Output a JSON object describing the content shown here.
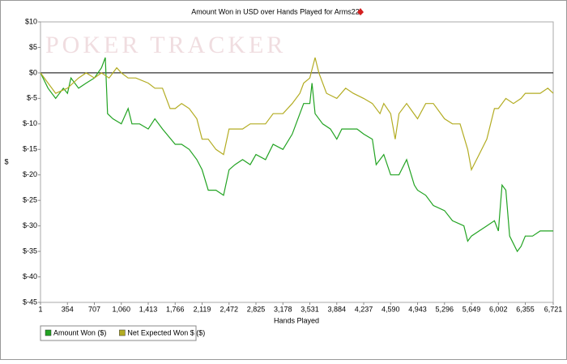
{
  "chart_data": {
    "type": "line",
    "title": "Amount Won in USD over Hands Played for Arms22",
    "watermark": "POKER TRACKER",
    "xlabel": "Hands Played",
    "ylabel": "$",
    "xlim": [
      1,
      6721
    ],
    "ylim": [
      -45,
      10
    ],
    "hline": 0,
    "xticks": [
      1,
      354,
      707,
      {
        "value": 1060,
        "label": "1,060"
      },
      {
        "value": 1413,
        "label": "1,413"
      },
      {
        "value": 1766,
        "label": "1,766"
      },
      {
        "value": 2119,
        "label": "2,119"
      },
      {
        "value": 2472,
        "label": "2,472"
      },
      {
        "value": 2825,
        "label": "2,825"
      },
      {
        "value": 3178,
        "label": "3,178"
      },
      {
        "value": 3531,
        "label": "3,531"
      },
      {
        "value": 3884,
        "label": "3,884"
      },
      {
        "value": 4237,
        "label": "4,237"
      },
      {
        "value": 4590,
        "label": "4,590"
      },
      {
        "value": 4943,
        "label": "4,943"
      },
      {
        "value": 5296,
        "label": "5,296"
      },
      {
        "value": 5649,
        "label": "5,649"
      },
      {
        "value": 6002,
        "label": "6,002"
      },
      {
        "value": 6355,
        "label": "6,355"
      },
      {
        "value": 6721,
        "label": "6,721"
      }
    ],
    "yticks": [
      {
        "value": 10,
        "label": "$10"
      },
      {
        "value": 5,
        "label": "$5"
      },
      {
        "value": 0,
        "label": "$0"
      },
      {
        "value": -5,
        "label": "$-5"
      },
      {
        "value": -10,
        "label": "$-10"
      },
      {
        "value": -15,
        "label": "$-15"
      },
      {
        "value": -20,
        "label": "$-20"
      },
      {
        "value": -25,
        "label": "$-25"
      },
      {
        "value": -30,
        "label": "$-30"
      },
      {
        "value": -35,
        "label": "$-35"
      },
      {
        "value": -40,
        "label": "$-40"
      },
      {
        "value": -45,
        "label": "$-45"
      }
    ],
    "series": [
      {
        "name": "Amount Won ($)",
        "color": "#22a322",
        "x": [
          1,
          100,
          200,
          300,
          354,
          400,
          500,
          600,
          707,
          800,
          850,
          880,
          950,
          1060,
          1150,
          1200,
          1300,
          1413,
          1500,
          1600,
          1766,
          1850,
          1950,
          2050,
          2119,
          2200,
          2300,
          2400,
          2472,
          2550,
          2650,
          2750,
          2825,
          2950,
          3050,
          3178,
          3300,
          3400,
          3450,
          3531,
          3560,
          3600,
          3700,
          3800,
          3884,
          3950,
          4050,
          4150,
          4237,
          4350,
          4400,
          4500,
          4590,
          4700,
          4800,
          4900,
          4943,
          5050,
          5150,
          5296,
          5400,
          5550,
          5600,
          5649,
          5750,
          5850,
          5950,
          6002,
          6050,
          6100,
          6150,
          6250,
          6300,
          6355,
          6450,
          6550,
          6650,
          6721
        ],
        "values": [
          0,
          -3,
          -5,
          -3,
          -4,
          -1,
          -3,
          -2,
          -1,
          1,
          3,
          -8,
          -9,
          -10,
          -7,
          -10,
          -10,
          -11,
          -9,
          -11,
          -14,
          -14,
          -15,
          -17,
          -19,
          -23,
          -23,
          -24,
          -19,
          -18,
          -17,
          -18,
          -16,
          -17,
          -14,
          -15,
          -12,
          -8,
          -6,
          -6,
          -2,
          -8,
          -10,
          -11,
          -13,
          -11,
          -11,
          -11,
          -12,
          -13,
          -18,
          -16,
          -20,
          -20,
          -17,
          -22,
          -23,
          -24,
          -26,
          -27,
          -29,
          -30,
          -33,
          -32,
          -31,
          -30,
          -29,
          -31,
          -22,
          -23,
          -32,
          -35,
          -34,
          -32,
          -32,
          -31,
          -31,
          -31
        ]
      },
      {
        "name": "Net Expected Won $ ($)",
        "color": "#b3ac22",
        "x": [
          1,
          200,
          354,
          500,
          600,
          707,
          800,
          900,
          1000,
          1060,
          1150,
          1250,
          1413,
          1500,
          1600,
          1700,
          1766,
          1850,
          1950,
          2050,
          2119,
          2200,
          2300,
          2400,
          2472,
          2550,
          2650,
          2750,
          2825,
          2950,
          3050,
          3178,
          3300,
          3400,
          3450,
          3531,
          3600,
          3650,
          3750,
          3884,
          4000,
          4100,
          4237,
          4350,
          4450,
          4500,
          4590,
          4650,
          4700,
          4800,
          4943,
          5050,
          5150,
          5296,
          5400,
          5500,
          5600,
          5649,
          5750,
          5850,
          5950,
          6002,
          6100,
          6200,
          6300,
          6355,
          6450,
          6550,
          6650,
          6721
        ],
        "values": [
          0,
          -4,
          -3,
          -1,
          0,
          -1,
          0,
          -1,
          1,
          0,
          -1,
          -1,
          -2,
          -3,
          -3,
          -7,
          -7,
          -6,
          -7,
          -9,
          -13,
          -13,
          -15,
          -16,
          -11,
          -11,
          -11,
          -10,
          -10,
          -10,
          -8,
          -8,
          -6,
          -4,
          -2,
          -1,
          3,
          0,
          -4,
          -5,
          -3,
          -4,
          -5,
          -6,
          -8,
          -6,
          -8,
          -13,
          -8,
          -6,
          -9,
          -6,
          -6,
          -9,
          -10,
          -10,
          -15,
          -19,
          -16,
          -13,
          -7,
          -7,
          -5,
          -6,
          -5,
          -4,
          -4,
          -4,
          -3,
          -4
        ]
      }
    ]
  }
}
